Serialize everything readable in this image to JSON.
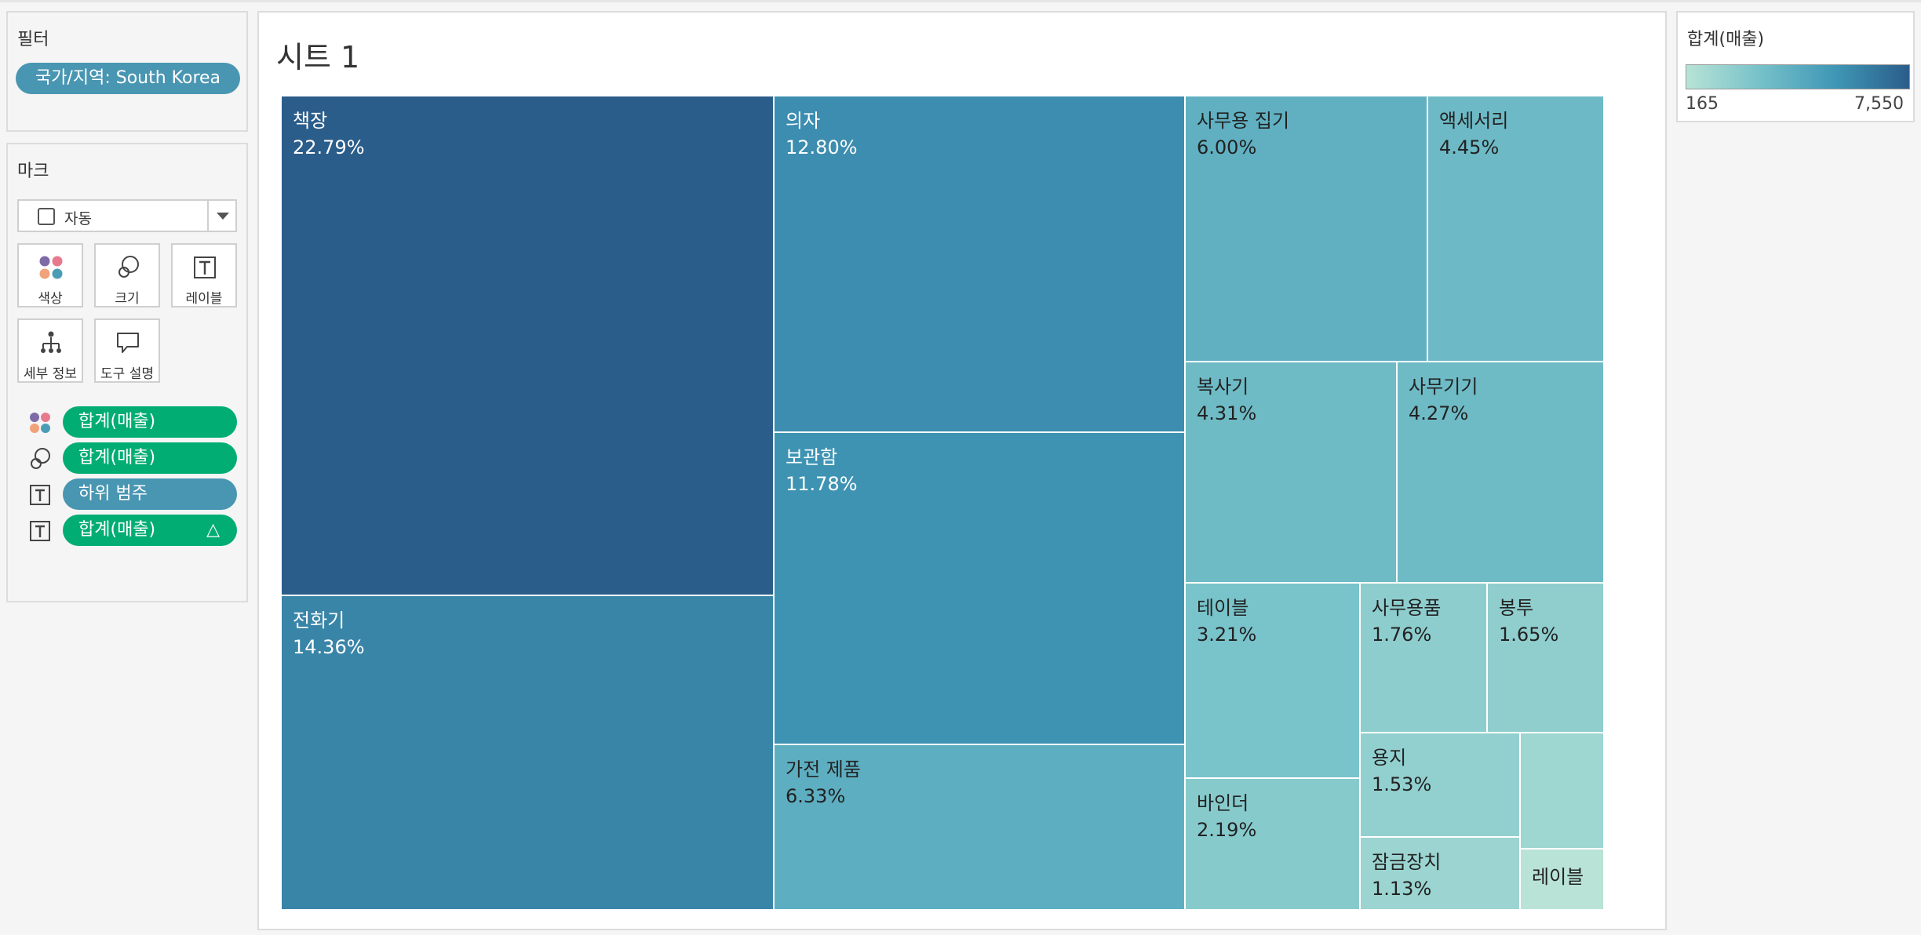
{
  "filters": {
    "title": "필터",
    "items": [
      "국가/지역: South Korea"
    ]
  },
  "marks": {
    "title": "마크",
    "mark_type": "자동",
    "buttons": [
      "색상",
      "크기",
      "레이블",
      "세부 정보",
      "도구 설명"
    ],
    "shelf": [
      {
        "icon": "color-icon",
        "label": "합계(매출)",
        "type": "measure"
      },
      {
        "icon": "size-icon",
        "label": "합계(매출)",
        "type": "measure"
      },
      {
        "icon": "label-icon",
        "label": "하위 범주",
        "type": "dimension"
      },
      {
        "icon": "label-icon",
        "label": "합계(매출)",
        "type": "measure",
        "delta": "△"
      }
    ]
  },
  "sheet": {
    "title": "시트 1"
  },
  "legend": {
    "title": "합계(매출)",
    "min": "165",
    "max": "7,550",
    "colors": [
      "#b8e3d6",
      "#76c1c9",
      "#3f97b6",
      "#2b5d8a"
    ]
  },
  "chart_data": {
    "type": "treemap",
    "measure": "합계(매출)",
    "label_format": "percent of total",
    "items": [
      {
        "name": "책장",
        "percent": "22.79%",
        "value": 22.79
      },
      {
        "name": "전화기",
        "percent": "14.36%",
        "value": 14.36
      },
      {
        "name": "의자",
        "percent": "12.80%",
        "value": 12.8
      },
      {
        "name": "보관함",
        "percent": "11.78%",
        "value": 11.78
      },
      {
        "name": "가전 제품",
        "percent": "6.33%",
        "value": 6.33
      },
      {
        "name": "사무용 집기",
        "percent": "6.00%",
        "value": 6.0
      },
      {
        "name": "액세서리",
        "percent": "4.45%",
        "value": 4.45
      },
      {
        "name": "복사기",
        "percent": "4.31%",
        "value": 4.31
      },
      {
        "name": "사무기기",
        "percent": "4.27%",
        "value": 4.27
      },
      {
        "name": "테이블",
        "percent": "3.21%",
        "value": 3.21
      },
      {
        "name": "바인더",
        "percent": "2.19%",
        "value": 2.19
      },
      {
        "name": "사무용품",
        "percent": "1.76%",
        "value": 1.76
      },
      {
        "name": "봉투",
        "percent": "1.65%",
        "value": 1.65
      },
      {
        "name": "용지",
        "percent": "1.53%",
        "value": 1.53
      },
      {
        "name": "잠금장치",
        "percent": "1.13%",
        "value": 1.13
      },
      {
        "name": "",
        "percent": "",
        "value": 1.0
      },
      {
        "name": "레이블",
        "percent": "",
        "value": 0.44
      }
    ]
  }
}
